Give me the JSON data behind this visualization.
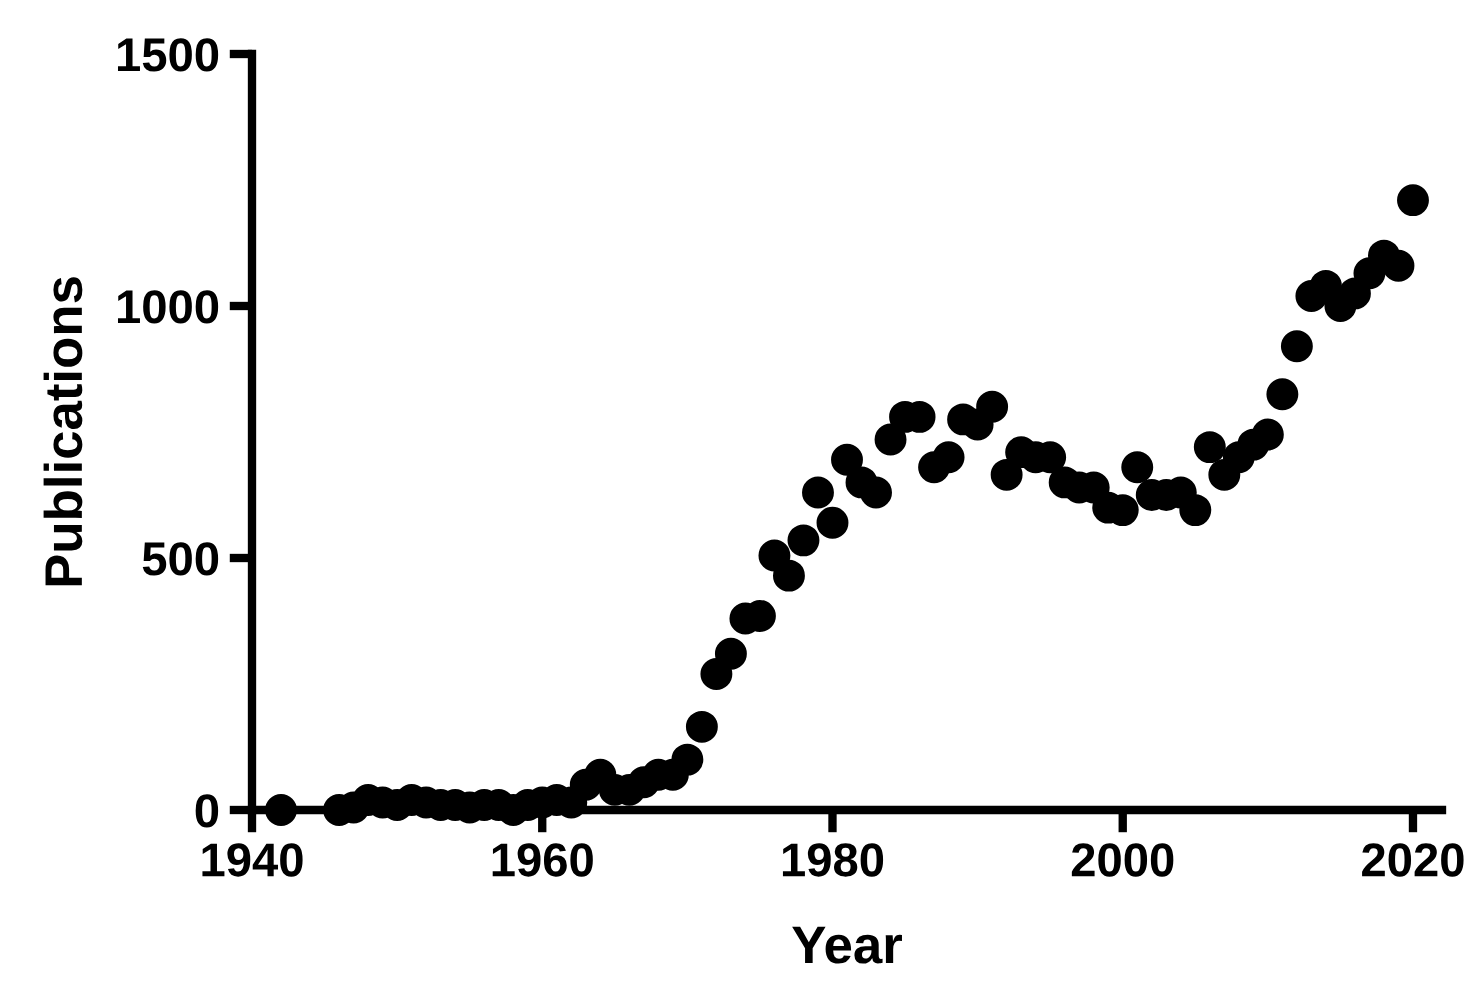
{
  "chart_data": {
    "type": "scatter",
    "xlabel": "Year",
    "ylabel": "Publications",
    "x": [
      1942,
      1946,
      1947,
      1948,
      1949,
      1950,
      1951,
      1952,
      1953,
      1954,
      1955,
      1956,
      1957,
      1958,
      1959,
      1960,
      1961,
      1962,
      1963,
      1964,
      1965,
      1966,
      1967,
      1968,
      1969,
      1970,
      1971,
      1972,
      1973,
      1974,
      1975,
      1976,
      1977,
      1978,
      1979,
      1980,
      1981,
      1982,
      1983,
      1984,
      1985,
      1986,
      1987,
      1988,
      1989,
      1990,
      1991,
      1992,
      1993,
      1994,
      1995,
      1996,
      1997,
      1998,
      1999,
      2000,
      2001,
      2002,
      2003,
      2004,
      2005,
      2006,
      2007,
      2008,
      2009,
      2010,
      2011,
      2012,
      2013,
      2014,
      2015,
      2016,
      2017,
      2018,
      2019,
      2020
    ],
    "series": [
      {
        "color": "#000000",
        "values": [
          0,
          0,
          5,
          20,
          15,
          10,
          20,
          15,
          10,
          10,
          5,
          10,
          10,
          0,
          10,
          15,
          20,
          15,
          50,
          70,
          40,
          40,
          55,
          70,
          70,
          100,
          165,
          270,
          310,
          380,
          385,
          505,
          465,
          535,
          630,
          570,
          695,
          650,
          630,
          735,
          780,
          780,
          680,
          700,
          775,
          765,
          800,
          665,
          710,
          700,
          700,
          650,
          640,
          640,
          600,
          595,
          680,
          625,
          625,
          630,
          595,
          720,
          665,
          700,
          725,
          745,
          825,
          920,
          1020,
          1040,
          1000,
          1025,
          1065,
          1100,
          1080,
          1210
        ]
      }
    ],
    "xlim": [
      1940,
      2022
    ],
    "xticks": [
      1940,
      1960,
      1980,
      2000,
      2020
    ],
    "ylim": [
      0,
      1500
    ],
    "yticks": [
      0,
      500,
      1000,
      1500
    ],
    "marker": "circle",
    "grid": false,
    "legend": false
  }
}
